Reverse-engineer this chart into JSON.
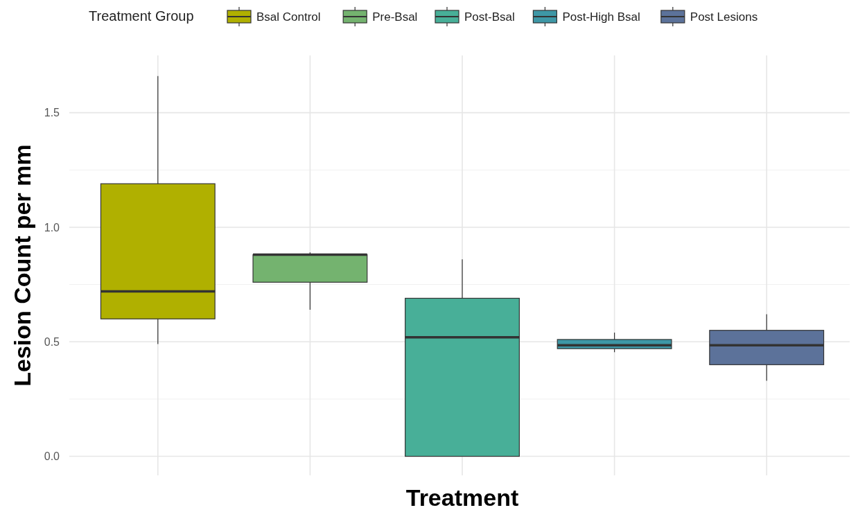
{
  "chart_data": {
    "type": "box",
    "xlabel": "Treatment",
    "ylabel": "Lesion Count per mm",
    "legend_title": "Treatment Group",
    "legend": "top",
    "grid": true,
    "categories": [
      null,
      null,
      null,
      null,
      null
    ],
    "ylim": [
      -0.08,
      1.75
    ],
    "yticks": [
      {
        "value": 0,
        "label": "0.0"
      },
      0.5,
      {
        "value": 1,
        "label": "1.0"
      },
      1.5
    ],
    "series": [
      {
        "name": "Bsal Control",
        "color": "#b0b000",
        "boxes": [
          {
            "low": 0.49,
            "q1": 0.6,
            "median": 0.72,
            "q3": 1.19,
            "high": 1.66
          },
          null,
          null,
          null,
          null
        ]
      },
      {
        "name": "Pre-Bsal",
        "color": "#74b36f",
        "boxes": [
          null,
          {
            "low": 0.64,
            "q1": 0.76,
            "median": 0.88,
            "q3": 0.88,
            "high": 0.89
          },
          null,
          null,
          null
        ]
      },
      {
        "name": "Post-Bsal",
        "color": "#48af98",
        "boxes": [
          null,
          null,
          {
            "low": 0,
            "q1": 0,
            "median": 0.52,
            "q3": 0.69,
            "high": 0.86
          },
          null,
          null
        ]
      },
      {
        "name": "Post-High Bsal",
        "color": "#3e97a6",
        "boxes": [
          null,
          null,
          null,
          {
            "low": 0.455,
            "q1": 0.47,
            "median": 0.485,
            "q3": 0.51,
            "high": 0.54
          },
          null
        ]
      },
      {
        "name": "Post Lesions",
        "color": "#5c729a",
        "boxes": [
          null,
          null,
          null,
          null,
          {
            "low": 0.33,
            "q1": 0.4,
            "median": 0.485,
            "q3": 0.55,
            "high": 0.62
          }
        ]
      }
    ]
  }
}
